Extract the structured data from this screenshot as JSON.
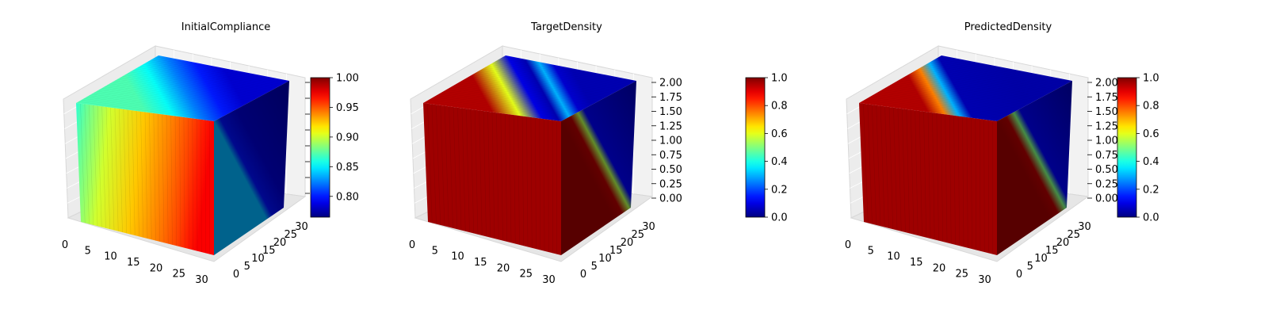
{
  "chart_data": [
    {
      "type": "voxel-3d",
      "title": "InitialCompliance",
      "x_ticks": [
        "0",
        "5",
        "10",
        "15",
        "20",
        "25",
        "30"
      ],
      "y_ticks": [
        "0",
        "5",
        "10",
        "15",
        "20",
        "25",
        "30"
      ],
      "z_ticks": [],
      "x_range": [
        0,
        32
      ],
      "y_range": [
        0,
        32
      ],
      "colorbar": {
        "range": [
          0.765,
          1.0
        ],
        "tick_values": [
          0.8,
          0.85,
          0.9,
          0.95,
          1.0
        ],
        "tick_labels": [
          "0.80",
          "0.85",
          "0.90",
          "0.95",
          "1.00"
        ]
      },
      "top_stops": [
        [
          0,
          0.45
        ],
        [
          0.25,
          0.38
        ],
        [
          0.5,
          0.25
        ],
        [
          0.75,
          0.15
        ],
        [
          1,
          0.08
        ]
      ],
      "front_stops": [
        [
          0,
          0.42
        ],
        [
          0.08,
          0.48
        ],
        [
          0.25,
          0.58
        ],
        [
          0.5,
          0.68
        ],
        [
          0.7,
          0.75
        ],
        [
          0.85,
          0.81
        ],
        [
          0.93,
          0.85
        ],
        [
          1,
          0.88
        ]
      ],
      "side_stops": [
        [
          0,
          0.3
        ],
        [
          0.08,
          0.14
        ],
        [
          0.3,
          0.08
        ],
        [
          1,
          0.04
        ]
      ],
      "side_shade": 0.55
    },
    {
      "type": "voxel-3d",
      "title": "TargetDensity",
      "x_ticks": [
        "0",
        "5",
        "10",
        "15",
        "20",
        "25",
        "30"
      ],
      "y_ticks": [
        "0",
        "5",
        "10",
        "15",
        "20",
        "25",
        "30"
      ],
      "z_ticks": [
        "0.00",
        "0.25",
        "0.50",
        "0.75",
        "1.00",
        "1.25",
        "1.50",
        "1.75",
        "2.00"
      ],
      "z_range": [
        0,
        2
      ],
      "x_range": [
        0,
        32
      ],
      "y_range": [
        0,
        32
      ],
      "colorbar": {
        "range": [
          0.0,
          1.0
        ],
        "tick_values": [
          0.0,
          0.2,
          0.4,
          0.6,
          0.8,
          1.0
        ],
        "tick_labels": [
          "0.0",
          "0.2",
          "0.4",
          "0.6",
          "0.8",
          "1.0"
        ]
      },
      "top_stops": [
        [
          0,
          0.95
        ],
        [
          0.25,
          0.6
        ],
        [
          0.45,
          0.1
        ],
        [
          0.6,
          0.05
        ],
        [
          0.72,
          0.3
        ],
        [
          0.85,
          0.08
        ],
        [
          1,
          0.05
        ]
      ],
      "front_stops": [
        [
          0,
          0.97
        ],
        [
          1,
          0.97
        ]
      ],
      "side_stops": [
        [
          0,
          0.97
        ],
        [
          0.12,
          0.95
        ],
        [
          0.22,
          0.55
        ],
        [
          0.3,
          0.12
        ],
        [
          1,
          0.05
        ]
      ],
      "side_shade": 0.55
    },
    {
      "type": "voxel-3d",
      "title": "PredictedDensity",
      "x_ticks": [
        "0",
        "5",
        "10",
        "15",
        "20",
        "25",
        "30"
      ],
      "y_ticks": [
        "0",
        "5",
        "10",
        "15",
        "20",
        "25",
        "30"
      ],
      "z_ticks": [
        "0.00",
        "0.25",
        "0.50",
        "0.75",
        "1.00",
        "1.25",
        "1.50",
        "1.75",
        "2.00"
      ],
      "z_range": [
        0,
        2
      ],
      "x_range": [
        0,
        32
      ],
      "y_range": [
        0,
        32
      ],
      "colorbar": {
        "range": [
          0.0,
          1.0
        ],
        "tick_values": [
          0.0,
          0.2,
          0.4,
          0.6,
          0.8,
          1.0
        ],
        "tick_labels": [
          "0.0",
          "0.2",
          "0.4",
          "0.6",
          "0.8",
          "1.0"
        ]
      },
      "top_stops": [
        [
          0,
          0.95
        ],
        [
          0.15,
          0.75
        ],
        [
          0.28,
          0.3
        ],
        [
          0.4,
          0.05
        ],
        [
          1,
          0.04
        ]
      ],
      "front_stops": [
        [
          0,
          0.97
        ],
        [
          1,
          0.97
        ]
      ],
      "side_stops": [
        [
          0,
          0.97
        ],
        [
          0.12,
          0.95
        ],
        [
          0.22,
          0.5
        ],
        [
          0.3,
          0.12
        ],
        [
          1,
          0.05
        ]
      ],
      "side_shade": 0.55
    }
  ]
}
